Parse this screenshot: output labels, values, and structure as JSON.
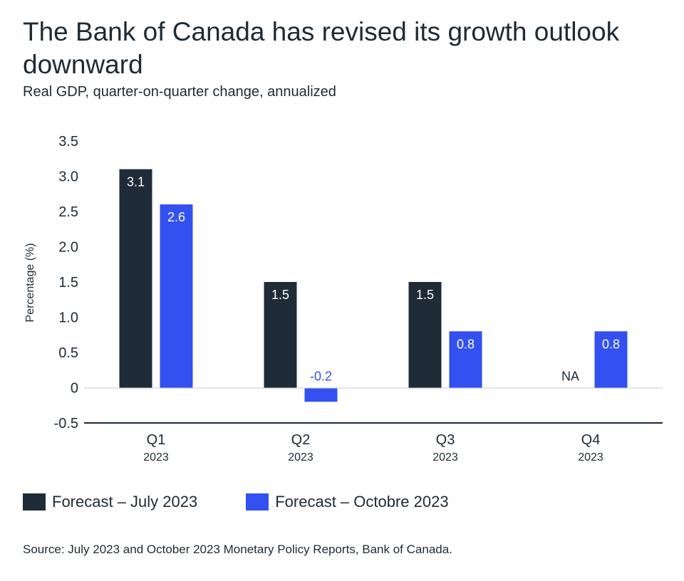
{
  "header": {
    "title": "The Bank of Canada has revised its growth outlook downward",
    "subtitle": "Real GDP, quarter-on-quarter change, annualized"
  },
  "footer": {
    "source": "Source: July 2023 and October 2023 Monetary Policy Reports, Bank of Canada."
  },
  "colors": {
    "july": "#1f2c38",
    "october": "#3350f0"
  },
  "chart_data": {
    "type": "bar",
    "title": "The Bank of Canada has revised its growth outlook downward",
    "subtitle": "Real GDP, quarter-on-quarter change, annualized",
    "xlabel": "",
    "ylabel": "Percentage (%)",
    "ylim": [
      -0.5,
      3.5
    ],
    "yticks": [
      -0.5,
      0,
      0.5,
      1.0,
      1.5,
      2.0,
      2.5,
      3.0,
      3.5
    ],
    "ytick_labels": [
      "-0.5",
      "0",
      "0.5",
      "1.0",
      "1.5",
      "2.0",
      "2.5",
      "3.0",
      "3.5"
    ],
    "categories": [
      "Q1",
      "Q2",
      "Q3",
      "Q4"
    ],
    "category_sublabels": [
      "2023",
      "2023",
      "2023",
      "2023"
    ],
    "series": [
      {
        "name": "Forecast – July 2023",
        "values": [
          3.1,
          1.5,
          1.5,
          null
        ],
        "labels": [
          "3.1",
          "1.5",
          "1.5",
          "NA"
        ]
      },
      {
        "name": "Forecast – Octobre 2023",
        "values": [
          2.6,
          -0.2,
          0.8,
          0.8
        ],
        "labels": [
          "2.6",
          "-0.2",
          "0.8",
          "0.8"
        ]
      }
    ],
    "grid": false,
    "legend": "bottom"
  }
}
